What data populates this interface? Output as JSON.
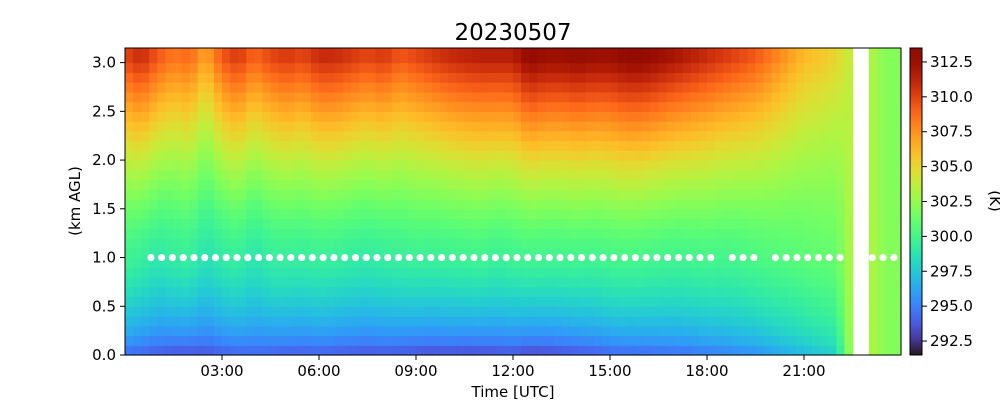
{
  "chart_data": {
    "type": "heatmap",
    "title": "20230507",
    "xlabel": "Time [UTC]",
    "ylabel": "(km AGL)",
    "colorbar_label": "(K)",
    "xlim": [
      0,
      24
    ],
    "ylim": [
      0,
      3.15
    ],
    "x_ticks": [
      3,
      6,
      9,
      12,
      15,
      18,
      21
    ],
    "x_tick_labels": [
      "03:00",
      "06:00",
      "09:00",
      "12:00",
      "15:00",
      "18:00",
      "21:00"
    ],
    "y_ticks": [
      0.0,
      0.5,
      1.0,
      1.5,
      2.0,
      2.5,
      3.0
    ],
    "y_tick_labels": [
      "0.0",
      "0.5",
      "1.0",
      "1.5",
      "2.0",
      "2.5",
      "3.0"
    ],
    "colorbar_range": [
      291.5,
      313.5
    ],
    "colorbar_ticks": [
      292.5,
      295.0,
      297.5,
      300.0,
      302.5,
      305.0,
      307.5,
      310.0,
      312.5
    ],
    "colorbar_tick_labels": [
      "292.5",
      "295.0",
      "297.5",
      "300.0",
      "302.5",
      "305.0",
      "307.5",
      "310.0",
      "312.5"
    ],
    "colormap": "turbo",
    "height_levels_km": [
      0.05,
      0.15,
      0.25,
      0.35,
      0.45,
      0.55,
      0.65,
      0.75,
      0.85,
      0.95,
      1.05,
      1.15,
      1.25,
      1.35,
      1.45,
      1.55,
      1.65,
      1.75,
      1.85,
      1.95,
      2.05,
      2.15,
      2.25,
      2.35,
      2.45,
      2.55,
      2.65,
      2.75,
      2.85,
      2.95,
      3.05
    ],
    "profile_hours": [
      0,
      0.5,
      1,
      1.5,
      2,
      2.5,
      3,
      3.5,
      4,
      4.5,
      5,
      5.5,
      6,
      6.5,
      7,
      7.5,
      8,
      8.5,
      9,
      9.5,
      10,
      10.5,
      11,
      11.5,
      12,
      12.5,
      13,
      13.5,
      14,
      14.5,
      15,
      15.5,
      16,
      16.5,
      17,
      17.5,
      18,
      18.5,
      19,
      19.5,
      20,
      20.5,
      21,
      21.5,
      22,
      22.5,
      23,
      23.5,
      24
    ],
    "profile_surface_K": [
      293.8,
      293.5,
      293.2,
      293.0,
      292.9,
      293.0,
      293.3,
      293.5,
      293.6,
      293.4,
      293.3,
      293.2,
      293.3,
      293.2,
      293.1,
      293.0,
      293.1,
      293.0,
      292.8,
      292.7,
      292.8,
      292.6,
      292.7,
      292.8,
      292.9,
      292.5,
      292.6,
      292.8,
      293.0,
      293.2,
      293.5,
      293.6,
      293.7,
      293.8,
      293.9,
      294.0,
      294.3,
      294.5,
      294.8,
      295.0,
      295.5,
      296.0,
      296.5,
      297.0,
      297.5,
      303.5,
      303.5,
      302.0,
      302.0
    ],
    "profile_1km_K": [
      299.8,
      299.5,
      299.0,
      299.3,
      299.5,
      298.6,
      299.2,
      299.5,
      298.8,
      299.4,
      299.5,
      299.4,
      299.6,
      299.5,
      299.3,
      299.2,
      299.4,
      299.5,
      299.7,
      299.6,
      299.7,
      299.8,
      299.9,
      299.6,
      299.8,
      300.0,
      299.9,
      299.9,
      300.0,
      299.9,
      300.1,
      300.2,
      300.1,
      300.0,
      299.9,
      300.0,
      300.1,
      300.0,
      300.1,
      300.3,
      300.5,
      300.6,
      300.8,
      301.0,
      301.1,
      303.5,
      303.5,
      302.0,
      302.0
    ],
    "profile_3km_K": [
      309.5,
      310.5,
      309.0,
      308.0,
      308.5,
      306.5,
      309.0,
      310.0,
      308.5,
      309.5,
      310.0,
      309.5,
      310.5,
      310.5,
      310.0,
      309.5,
      310.0,
      309.0,
      309.5,
      310.0,
      310.5,
      310.8,
      311.0,
      311.0,
      311.0,
      312.5,
      312.0,
      312.0,
      312.3,
      312.0,
      312.0,
      312.5,
      312.5,
      312.0,
      311.5,
      311.0,
      310.5,
      310.0,
      309.5,
      309.0,
      308.0,
      307.0,
      306.0,
      305.5,
      305.0,
      303.5,
      303.5,
      302.0,
      302.0
    ],
    "data_gap_hours": [
      22.6,
      22.9
    ],
    "marker_line_height_km": 1.0
  }
}
